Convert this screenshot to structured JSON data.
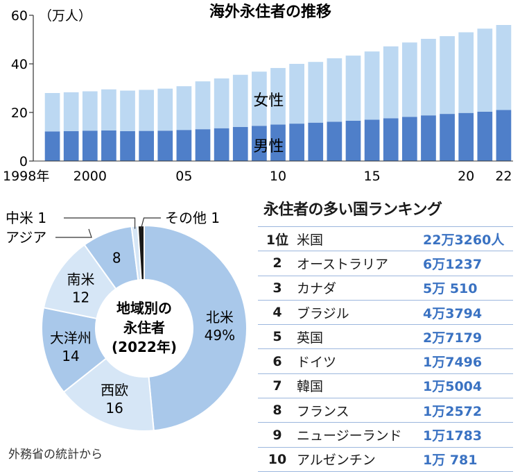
{
  "chart_data": [
    {
      "type": "bar",
      "title": "海外永住者の推移",
      "unit": "（万人）",
      "ylim": [
        0,
        60
      ],
      "yticks": [
        0,
        20,
        40,
        60
      ],
      "x": [
        1998,
        1999,
        2000,
        2001,
        2002,
        2003,
        2004,
        2005,
        2006,
        2007,
        2008,
        2009,
        2010,
        2011,
        2012,
        2013,
        2014,
        2015,
        2016,
        2017,
        2018,
        2019,
        2020,
        2021,
        2022
      ],
      "x_tick_labels": [
        {
          "year": 1998,
          "label": "1998年"
        },
        {
          "year": 2000,
          "label": "2000"
        },
        {
          "year": 2005,
          "label": "05"
        },
        {
          "year": 2010,
          "label": "10"
        },
        {
          "year": 2015,
          "label": "15"
        },
        {
          "year": 2020,
          "label": "20"
        },
        {
          "year": 2022,
          "label": "22"
        }
      ],
      "series": [
        {
          "name": "男性",
          "color": "#4f7fc9",
          "values": [
            12.2,
            12.3,
            12.5,
            12.6,
            12.3,
            12.4,
            12.5,
            12.8,
            13.1,
            13.5,
            14.0,
            14.5,
            15.0,
            15.4,
            15.8,
            16.2,
            16.6,
            17.0,
            17.6,
            18.2,
            18.8,
            19.4,
            19.8,
            20.3,
            21.0
          ]
        },
        {
          "name": "女性",
          "color": "#bcd8f2",
          "values": [
            15.8,
            16.0,
            16.2,
            16.9,
            16.7,
            16.9,
            17.3,
            18.0,
            19.7,
            20.5,
            21.5,
            22.3,
            23.3,
            24.6,
            25.0,
            26.1,
            26.8,
            28.1,
            29.6,
            30.6,
            31.5,
            32.0,
            33.2,
            34.2,
            35.0
          ]
        }
      ],
      "series_labels": [
        "女性",
        "男性"
      ]
    },
    {
      "type": "pie",
      "title_lines": [
        "地域別の",
        "永住者",
        "(2022年)"
      ],
      "slices": [
        {
          "name": "北米",
          "value": 49,
          "value_label": "49%",
          "color": "#a9c8ea"
        },
        {
          "name": "西欧",
          "value": 16,
          "value_label": "16",
          "color": "#d6e6f6"
        },
        {
          "name": "大洋州",
          "value": 14,
          "value_label": "14",
          "color": "#a9c8ea"
        },
        {
          "name": "南米",
          "value": 12,
          "value_label": "12",
          "color": "#d6e6f6"
        },
        {
          "name": "アジア",
          "value": 8,
          "value_label": "8",
          "color": "#a9c8ea"
        },
        {
          "name": "中米",
          "value": 1,
          "value_label": "1",
          "color": "#d6e6f6"
        },
        {
          "name": "その他",
          "value": 1,
          "value_label": "1",
          "color": "#1a1a1a"
        }
      ],
      "outside_labels": {
        "chubei": "中米 1",
        "asia": "アジア",
        "other": "その他 1"
      }
    }
  ],
  "ranking": {
    "title": "永住者の多い国ランキング",
    "rows": [
      {
        "rank": "1位",
        "country": "米国",
        "pop": "22万3260人"
      },
      {
        "rank": "2",
        "country": "オーストラリア",
        "pop": "6万1237"
      },
      {
        "rank": "3",
        "country": "カナダ",
        "pop": "5万  510"
      },
      {
        "rank": "4",
        "country": "ブラジル",
        "pop": "4万3794"
      },
      {
        "rank": "5",
        "country": "英国",
        "pop": "2万7179"
      },
      {
        "rank": "6",
        "country": "ドイツ",
        "pop": "1万7496"
      },
      {
        "rank": "7",
        "country": "韓国",
        "pop": "1万5004"
      },
      {
        "rank": "8",
        "country": "フランス",
        "pop": "1万2572"
      },
      {
        "rank": "9",
        "country": "ニュージーランド",
        "pop": "1万1783"
      },
      {
        "rank": "10",
        "country": "アルゼンチン",
        "pop": "1万  781"
      }
    ]
  },
  "source": "外務省の統計から"
}
